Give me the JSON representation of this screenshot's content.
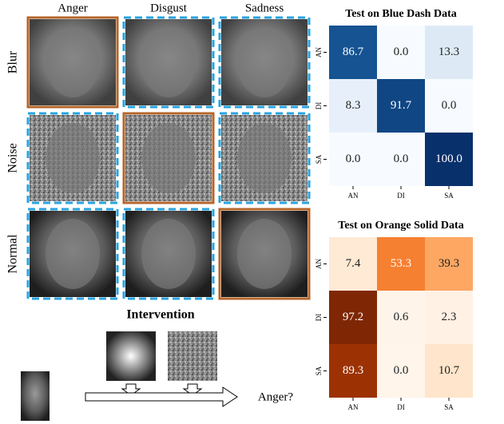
{
  "figure": {
    "columns": [
      "Anger",
      "Disgust",
      "Sadness"
    ],
    "rows": [
      "Blur",
      "Noise",
      "Normal"
    ],
    "intervention_title": "Intervention",
    "prediction": "Anger?"
  },
  "chart_data": [
    {
      "type": "heatmap",
      "title": "Test on Blue Dash Data",
      "x_categories": [
        "AN",
        "DI",
        "SA"
      ],
      "y_categories": [
        "AN",
        "DI",
        "SA"
      ],
      "values": [
        [
          86.7,
          0.0,
          13.3
        ],
        [
          8.3,
          91.7,
          0.0
        ],
        [
          0.0,
          0.0,
          100.0
        ]
      ],
      "value_labels": [
        [
          "86.7",
          "0.0",
          "13.3"
        ],
        [
          "8.3",
          "91.7",
          "0.0"
        ],
        [
          "0.0",
          "0.0",
          "100.0"
        ]
      ],
      "colors": [
        "#f7fbff",
        "#c6dbef",
        "#6baed6",
        "#2171b5",
        "#08306b"
      ]
    },
    {
      "type": "heatmap",
      "title": "Test on Orange Solid Data",
      "x_categories": [
        "AN",
        "DI",
        "SA"
      ],
      "y_categories": [
        "AN",
        "DI",
        "SA"
      ],
      "values": [
        [
          7.4,
          53.3,
          39.3
        ],
        [
          97.2,
          0.6,
          2.3
        ],
        [
          89.3,
          0.0,
          10.7
        ]
      ],
      "value_labels": [
        [
          "7.4",
          "53.3",
          "39.3"
        ],
        [
          "97.2",
          "0.6",
          "2.3"
        ],
        [
          "89.3",
          "0.0",
          "10.7"
        ]
      ],
      "colors": [
        "#fff5eb",
        "#fdd0a2",
        "#fd8d3c",
        "#d94801",
        "#7f2704"
      ]
    }
  ]
}
